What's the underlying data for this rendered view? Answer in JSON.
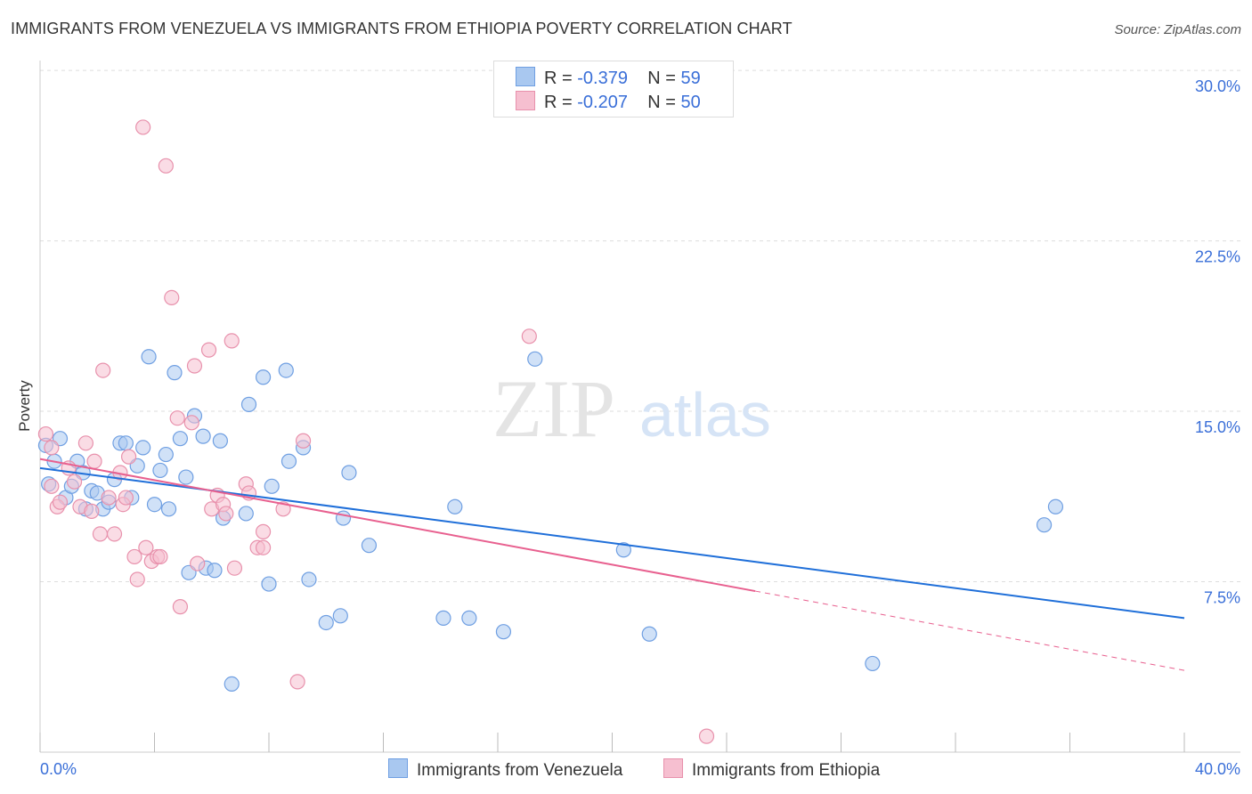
{
  "title": "IMMIGRANTS FROM VENEZUELA VS IMMIGRANTS FROM ETHIOPIA POVERTY CORRELATION CHART",
  "source": "Source: ZipAtlas.com",
  "watermark": "ZIPatlas",
  "legend": [
    {
      "r_label": "R = ",
      "r": "-0.379",
      "n_label": "N = ",
      "n": "59"
    },
    {
      "r_label": "R = ",
      "r": "-0.207",
      "n_label": "N = ",
      "n": "50"
    }
  ],
  "colors": {
    "blue_fill": "#a9c8f0",
    "blue_stroke": "#6f9fe2",
    "blue_line": "#1f6fd9",
    "pink_fill": "#f6bfd0",
    "pink_stroke": "#e891ac",
    "pink_line": "#e8608f",
    "tick": "#3a6fd8"
  },
  "chart_data": {
    "type": "scatter",
    "title": "IMMIGRANTS FROM VENEZUELA VS IMMIGRANTS FROM ETHIOPIA POVERTY CORRELATION CHART",
    "xlabel": "",
    "ylabel": "Poverty",
    "xlim": [
      0,
      40
    ],
    "ylim": [
      0,
      31.5
    ],
    "x_tick_labels": [
      "0.0%",
      "40.0%"
    ],
    "y_ticks": [
      7.5,
      15.0,
      22.5,
      30.0
    ],
    "y_tick_labels": [
      "7.5%",
      "15.0%",
      "22.5%",
      "30.0%"
    ],
    "x_minor_ticks": [
      0,
      4,
      8,
      12,
      16,
      20,
      24,
      28,
      32,
      36,
      40
    ],
    "legend_position": "top-center",
    "series": [
      {
        "name": "Immigrants from Venezuela",
        "color": "blue",
        "points": [
          [
            0.3,
            11.8
          ],
          [
            0.7,
            13.8
          ],
          [
            0.5,
            12.8
          ],
          [
            0.9,
            11.2
          ],
          [
            1.1,
            11.7
          ],
          [
            1.3,
            12.8
          ],
          [
            1.5,
            12.3
          ],
          [
            1.6,
            10.7
          ],
          [
            1.8,
            11.5
          ],
          [
            2.0,
            11.4
          ],
          [
            2.2,
            10.7
          ],
          [
            2.4,
            11.0
          ],
          [
            2.6,
            12.0
          ],
          [
            2.8,
            13.6
          ],
          [
            3.0,
            13.6
          ],
          [
            3.2,
            11.2
          ],
          [
            3.4,
            12.6
          ],
          [
            3.6,
            13.4
          ],
          [
            3.8,
            17.4
          ],
          [
            4.0,
            10.9
          ],
          [
            4.2,
            12.4
          ],
          [
            4.4,
            13.1
          ],
          [
            4.5,
            10.7
          ],
          [
            4.7,
            16.7
          ],
          [
            4.9,
            13.8
          ],
          [
            5.1,
            12.1
          ],
          [
            5.2,
            7.9
          ],
          [
            5.4,
            14.8
          ],
          [
            5.7,
            13.9
          ],
          [
            5.8,
            8.1
          ],
          [
            6.1,
            8.0
          ],
          [
            6.3,
            13.7
          ],
          [
            6.4,
            10.3
          ],
          [
            6.7,
            3.0
          ],
          [
            7.2,
            10.5
          ],
          [
            7.3,
            15.3
          ],
          [
            7.8,
            16.5
          ],
          [
            8.0,
            7.4
          ],
          [
            8.1,
            11.7
          ],
          [
            8.6,
            16.8
          ],
          [
            8.7,
            12.8
          ],
          [
            9.2,
            13.4
          ],
          [
            9.4,
            7.6
          ],
          [
            10.0,
            5.7
          ],
          [
            10.5,
            6.0
          ],
          [
            10.6,
            10.3
          ],
          [
            10.8,
            12.3
          ],
          [
            11.5,
            9.1
          ],
          [
            14.1,
            5.9
          ],
          [
            14.5,
            10.8
          ],
          [
            15.0,
            5.9
          ],
          [
            16.2,
            5.3
          ],
          [
            17.3,
            17.3
          ],
          [
            20.4,
            8.9
          ],
          [
            21.3,
            5.2
          ],
          [
            29.1,
            3.9
          ],
          [
            35.1,
            10.0
          ],
          [
            35.5,
            10.8
          ],
          [
            0.2,
            13.5
          ]
        ],
        "trend": {
          "x0": 0,
          "y0": 12.5,
          "x1": 40,
          "y1": 5.9
        }
      },
      {
        "name": "Immigrants from Ethiopia",
        "color": "pink",
        "points": [
          [
            0.2,
            14.0
          ],
          [
            0.4,
            13.4
          ],
          [
            0.4,
            11.7
          ],
          [
            0.6,
            10.8
          ],
          [
            0.7,
            11.0
          ],
          [
            1.0,
            12.5
          ],
          [
            1.2,
            11.9
          ],
          [
            1.4,
            10.8
          ],
          [
            1.6,
            13.6
          ],
          [
            1.8,
            10.6
          ],
          [
            1.9,
            12.8
          ],
          [
            2.1,
            9.6
          ],
          [
            2.2,
            16.8
          ],
          [
            2.4,
            11.2
          ],
          [
            2.6,
            9.6
          ],
          [
            2.8,
            12.3
          ],
          [
            2.9,
            10.9
          ],
          [
            3.1,
            13.0
          ],
          [
            3.3,
            8.6
          ],
          [
            3.4,
            7.6
          ],
          [
            3.6,
            27.5
          ],
          [
            3.7,
            9.0
          ],
          [
            3.9,
            8.4
          ],
          [
            4.1,
            8.6
          ],
          [
            4.4,
            25.8
          ],
          [
            4.6,
            20.0
          ],
          [
            4.8,
            14.7
          ],
          [
            4.9,
            6.4
          ],
          [
            5.3,
            14.5
          ],
          [
            5.4,
            17.0
          ],
          [
            5.5,
            8.3
          ],
          [
            5.9,
            17.7
          ],
          [
            6.0,
            10.7
          ],
          [
            6.2,
            11.3
          ],
          [
            6.4,
            10.9
          ],
          [
            6.5,
            10.5
          ],
          [
            6.7,
            18.1
          ],
          [
            6.8,
            8.1
          ],
          [
            7.2,
            11.8
          ],
          [
            7.3,
            11.4
          ],
          [
            7.6,
            9.0
          ],
          [
            7.8,
            9.7
          ],
          [
            7.8,
            9.0
          ],
          [
            8.5,
            10.7
          ],
          [
            9.0,
            3.1
          ],
          [
            9.2,
            13.7
          ],
          [
            17.1,
            18.3
          ],
          [
            23.3,
            0.7
          ],
          [
            3.0,
            11.2
          ],
          [
            4.2,
            8.6
          ]
        ],
        "trend": {
          "x0": 0,
          "y0": 12.9,
          "x1": 40,
          "y1": 3.6,
          "solid_until": 25
        }
      }
    ]
  }
}
